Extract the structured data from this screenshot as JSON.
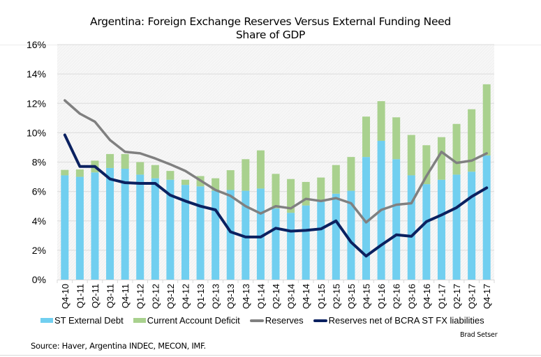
{
  "chart_data": {
    "type": "bar",
    "title": "Argentina: Foreign Exchange Reserves Versus External Funding Need",
    "subtitle": "Share of GDP",
    "xlabel": "",
    "ylabel": "",
    "ylim": [
      0,
      16
    ],
    "y_ticks": [
      "0%",
      "2%",
      "4%",
      "6%",
      "8%",
      "10%",
      "12%",
      "14%",
      "16%"
    ],
    "y_tick_values": [
      0,
      2,
      4,
      6,
      8,
      10,
      12,
      14,
      16
    ],
    "grid": true,
    "legend_position": "bottom",
    "categories": [
      "Q4-10",
      "Q1-11",
      "Q2-11",
      "Q3-11",
      "Q4-11",
      "Q1-12",
      "Q2-12",
      "Q3-12",
      "Q4-12",
      "Q1-13",
      "Q2-13",
      "Q3-13",
      "Q4-13",
      "Q1-14",
      "Q2-14",
      "Q3-14",
      "Q4-14",
      "Q1-15",
      "Q2-15",
      "Q3-15",
      "Q4-15",
      "Q1-16",
      "Q2-16",
      "Q3-16",
      "Q4-16",
      "Q1-17",
      "Q2-17",
      "Q3-17",
      "Q4-17"
    ],
    "series": [
      {
        "name": "ST External Debt",
        "kind": "stacked-bar",
        "color": "#71cff0",
        "values": [
          7.1,
          7.0,
          7.3,
          7.6,
          7.55,
          7.15,
          6.9,
          6.8,
          6.45,
          6.35,
          6.05,
          6.1,
          6.05,
          6.2,
          4.85,
          4.55,
          5.05,
          5.3,
          5.85,
          6.05,
          8.35,
          9.45,
          8.2,
          7.1,
          6.5,
          6.8,
          7.15,
          7.35,
          8.45
        ]
      },
      {
        "name": "Current Account Deficit",
        "kind": "stacked-bar",
        "color": "#a9d18e",
        "values": [
          0.37,
          0.5,
          0.8,
          0.95,
          1.0,
          0.85,
          0.9,
          0.6,
          0.35,
          0.7,
          0.85,
          1.35,
          2.15,
          2.6,
          2.35,
          2.3,
          1.6,
          1.65,
          1.95,
          2.3,
          2.75,
          2.7,
          2.85,
          2.75,
          2.65,
          2.9,
          3.45,
          4.25,
          4.85
        ]
      },
      {
        "name": "Reserves",
        "kind": "line",
        "color": "#808080",
        "values": [
          12.2,
          11.3,
          10.75,
          9.5,
          8.7,
          8.6,
          8.25,
          7.85,
          7.4,
          6.75,
          6.1,
          5.7,
          5.0,
          4.5,
          5.0,
          4.85,
          5.5,
          5.35,
          5.55,
          5.2,
          3.9,
          4.75,
          5.1,
          5.2,
          7.05,
          8.7,
          7.95,
          8.1,
          8.6
        ]
      },
      {
        "name": "Reserves net of BCRA ST FX liabilities",
        "kind": "line",
        "color": "#0b2160",
        "values": [
          9.85,
          7.7,
          7.7,
          6.85,
          6.6,
          6.55,
          6.55,
          5.75,
          5.35,
          5.0,
          4.75,
          3.25,
          2.9,
          2.9,
          3.5,
          3.3,
          3.35,
          3.45,
          4.0,
          2.55,
          1.6,
          2.35,
          3.05,
          2.95,
          3.95,
          4.4,
          4.9,
          5.65,
          6.25
        ]
      }
    ]
  },
  "legend": {
    "items": [
      {
        "label": "ST External Debt",
        "color": "#71cff0",
        "type": "bar"
      },
      {
        "label": "Current Account Deficit",
        "color": "#a9d18e",
        "type": "bar"
      },
      {
        "label": "Reserves",
        "color": "#808080",
        "type": "line"
      },
      {
        "label": "Reserves net of BCRA ST FX liabilities",
        "color": "#0b2160",
        "type": "line"
      }
    ]
  },
  "footer": {
    "source": "Source: Haver, Argentina INDEC, MECON, IMF.",
    "credit": "Brad Setser"
  }
}
